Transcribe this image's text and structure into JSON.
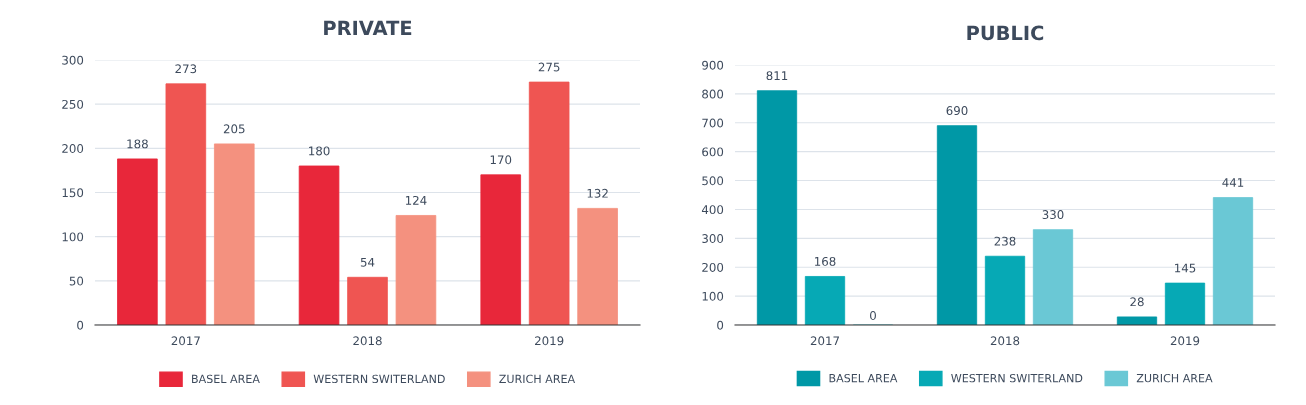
{
  "chart_data": [
    {
      "type": "bar",
      "title": "PRIVATE",
      "categories": [
        "2017",
        "2018",
        "2019"
      ],
      "series": [
        {
          "name": "BASEL AREA",
          "color": "#e8273a",
          "values": [
            188,
            180,
            170
          ]
        },
        {
          "name": "WESTERN SWITERLAND",
          "color": "#ef5552",
          "values": [
            273,
            54,
            275
          ]
        },
        {
          "name": "ZURICH AREA",
          "color": "#f4917f",
          "values": [
            205,
            124,
            132
          ]
        }
      ],
      "ylim": [
        0,
        300
      ],
      "yticks": [
        0,
        50,
        100,
        150,
        200,
        250,
        300
      ],
      "grid": "y",
      "legend": "bottom",
      "data_labels": true
    },
    {
      "type": "bar",
      "title": "PUBLIC",
      "categories": [
        "2017",
        "2018",
        "2019"
      ],
      "series": [
        {
          "name": "BASEL AREA",
          "color": "#0098a6",
          "values": [
            811,
            690,
            28
          ]
        },
        {
          "name": "WESTERN SWITERLAND",
          "color": "#06a9b5",
          "values": [
            168,
            238,
            145
          ]
        },
        {
          "name": "ZURICH AREA",
          "color": "#6ac8d5",
          "values": [
            0,
            330,
            441
          ]
        }
      ],
      "ylim": [
        0,
        900
      ],
      "yticks": [
        0,
        100,
        200,
        300,
        400,
        500,
        600,
        700,
        800,
        900
      ],
      "grid": "y",
      "legend": "bottom",
      "data_labels": true
    }
  ]
}
